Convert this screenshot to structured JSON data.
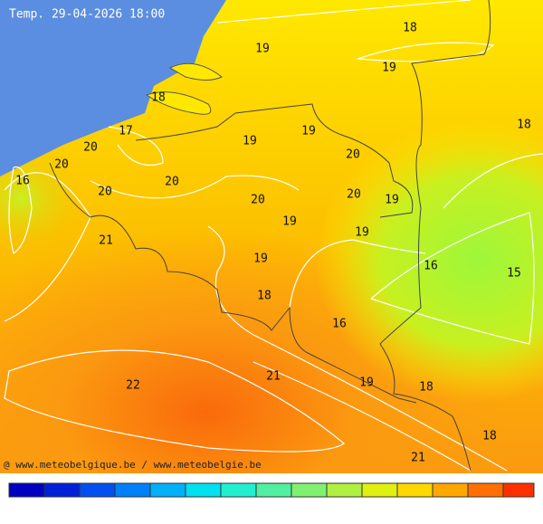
{
  "title": "Temp. 29-04-2026 18:00",
  "credit": "@ www.meteobelgique.be / www.meteobelgie.be",
  "labels": [
    18,
    19,
    19,
    18,
    18,
    17,
    19,
    19,
    20,
    20,
    20,
    16,
    20,
    20,
    20,
    20,
    19,
    19,
    19,
    21,
    19,
    16,
    15,
    18,
    16,
    21,
    19,
    22,
    18,
    18,
    21
  ]
}
